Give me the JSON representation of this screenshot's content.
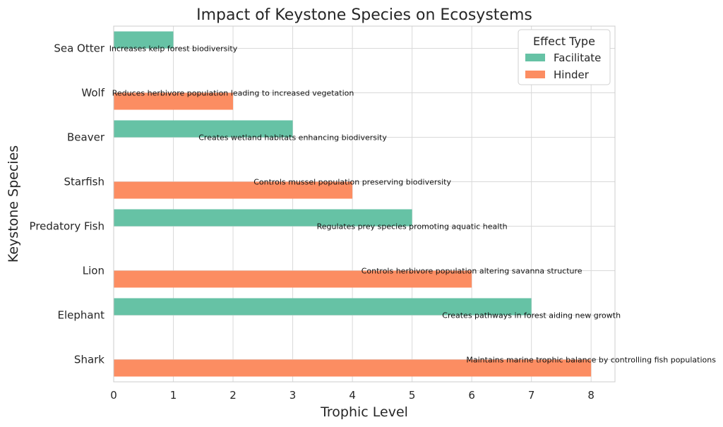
{
  "chart_data": {
    "type": "bar",
    "orientation": "horizontal",
    "title": "Impact of Keystone Species on Ecosystems",
    "xlabel": "Trophic Level",
    "ylabel": "Keystone Species",
    "xlim": [
      0,
      8.4
    ],
    "xticks": [
      0,
      1,
      2,
      3,
      4,
      5,
      6,
      7,
      8
    ],
    "grid": true,
    "legend": {
      "title": "Effect Type",
      "position": "top-right",
      "entries": [
        {
          "label": "Facilitate",
          "color": "#66c2a5"
        },
        {
          "label": "Hinder",
          "color": "#fc8d62"
        }
      ]
    },
    "categories": [
      "Sea Otter",
      "Wolf",
      "Beaver",
      "Starfish",
      "Predatory Fish",
      "Lion",
      "Elephant",
      "Shark"
    ],
    "bars": [
      {
        "category": "Sea Otter",
        "effect": "Facilitate",
        "value": 1,
        "annotation": "Increases kelp forest biodiversity"
      },
      {
        "category": "Wolf",
        "effect": "Hinder",
        "value": 2,
        "annotation": "Reduces herbivore population leading to increased vegetation"
      },
      {
        "category": "Beaver",
        "effect": "Facilitate",
        "value": 3,
        "annotation": "Creates wetland habitats enhancing biodiversity"
      },
      {
        "category": "Starfish",
        "effect": "Hinder",
        "value": 4,
        "annotation": "Controls mussel population preserving biodiversity"
      },
      {
        "category": "Predatory Fish",
        "effect": "Facilitate",
        "value": 5,
        "annotation": "Regulates prey species promoting aquatic health"
      },
      {
        "category": "Lion",
        "effect": "Hinder",
        "value": 6,
        "annotation": "Controls herbivore population altering savanna structure"
      },
      {
        "category": "Elephant",
        "effect": "Facilitate",
        "value": 7,
        "annotation": "Creates pathways in forest aiding new growth"
      },
      {
        "category": "Shark",
        "effect": "Hinder",
        "value": 8,
        "annotation": "Maintains marine trophic balance by controlling fish populations"
      }
    ]
  }
}
